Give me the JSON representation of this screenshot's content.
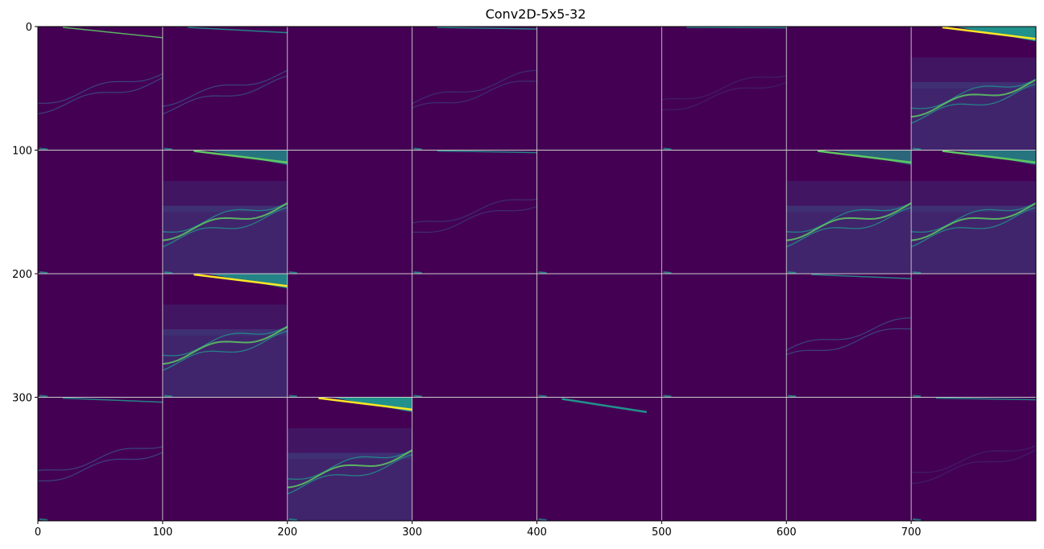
{
  "chart_data": {
    "type": "heatmap",
    "title": "Conv2D-5x5-32",
    "xlabel": "",
    "ylabel": "",
    "xlim": [
      0,
      800
    ],
    "ylim": [
      400,
      0
    ],
    "grid": true,
    "colormap": "viridis",
    "tile_size": [
      100,
      100
    ],
    "tile_grid": {
      "rows": 4,
      "cols": 8
    },
    "xticks": [
      0,
      100,
      200,
      300,
      400,
      500,
      600,
      700
    ],
    "xtick_labels": [
      "0",
      "100",
      "200",
      "300",
      "400",
      "500",
      "600",
      "700"
    ],
    "yticks": [
      0,
      100,
      200,
      300
    ],
    "ytick_labels": [
      "0",
      "100",
      "200",
      "300"
    ],
    "colors": {
      "background": "#440154",
      "low": "#3b528b",
      "mid": "#21918c",
      "high": "#5ec962",
      "peak": "#fde725",
      "grid": "#cccccc"
    },
    "tiles": [
      {
        "row": 0,
        "col": 0,
        "activation": "medium",
        "top_edge": 0.9
      },
      {
        "row": 0,
        "col": 1,
        "activation": "medium",
        "top_edge": 0.5
      },
      {
        "row": 0,
        "col": 2,
        "activation": "none",
        "top_edge": 0
      },
      {
        "row": 0,
        "col": 3,
        "activation": "weak",
        "top_edge": 0.2
      },
      {
        "row": 0,
        "col": 4,
        "activation": "none",
        "top_edge": 0
      },
      {
        "row": 0,
        "col": 5,
        "activation": "faint",
        "top_edge": 0.1
      },
      {
        "row": 0,
        "col": 6,
        "activation": "none",
        "top_edge": 0
      },
      {
        "row": 0,
        "col": 7,
        "activation": "strong",
        "top_edge": 1.0
      },
      {
        "row": 1,
        "col": 0,
        "activation": "none",
        "top_edge": 0
      },
      {
        "row": 1,
        "col": 1,
        "activation": "strong",
        "top_edge": 0.6
      },
      {
        "row": 1,
        "col": 2,
        "activation": "none",
        "top_edge": 0
      },
      {
        "row": 1,
        "col": 3,
        "activation": "weak",
        "top_edge": 0.2
      },
      {
        "row": 1,
        "col": 4,
        "activation": "none",
        "top_edge": 0
      },
      {
        "row": 1,
        "col": 5,
        "activation": "none",
        "top_edge": 0
      },
      {
        "row": 1,
        "col": 6,
        "activation": "strong",
        "top_edge": 0.4
      },
      {
        "row": 1,
        "col": 7,
        "activation": "strong",
        "top_edge": 0.6
      },
      {
        "row": 2,
        "col": 0,
        "activation": "none",
        "top_edge": 0
      },
      {
        "row": 2,
        "col": 1,
        "activation": "strong",
        "top_edge": 0.8
      },
      {
        "row": 2,
        "col": 2,
        "activation": "none",
        "top_edge": 0
      },
      {
        "row": 2,
        "col": 3,
        "activation": "none",
        "top_edge": 0
      },
      {
        "row": 2,
        "col": 4,
        "activation": "none",
        "top_edge": 0
      },
      {
        "row": 2,
        "col": 5,
        "activation": "none",
        "top_edge": 0
      },
      {
        "row": 2,
        "col": 6,
        "activation": "medium",
        "top_edge": 0.4
      },
      {
        "row": 2,
        "col": 7,
        "activation": "none",
        "top_edge": 0
      },
      {
        "row": 3,
        "col": 0,
        "activation": "medium",
        "top_edge": 0.4
      },
      {
        "row": 3,
        "col": 1,
        "activation": "none",
        "top_edge": 0
      },
      {
        "row": 3,
        "col": 2,
        "activation": "strong",
        "top_edge": 1.0
      },
      {
        "row": 3,
        "col": 3,
        "activation": "none",
        "top_edge": 0
      },
      {
        "row": 3,
        "col": 4,
        "activation": "line",
        "top_edge": 0.5
      },
      {
        "row": 3,
        "col": 5,
        "activation": "none",
        "top_edge": 0
      },
      {
        "row": 3,
        "col": 6,
        "activation": "none",
        "top_edge": 0
      },
      {
        "row": 3,
        "col": 7,
        "activation": "faint",
        "top_edge": 0.2
      }
    ]
  }
}
